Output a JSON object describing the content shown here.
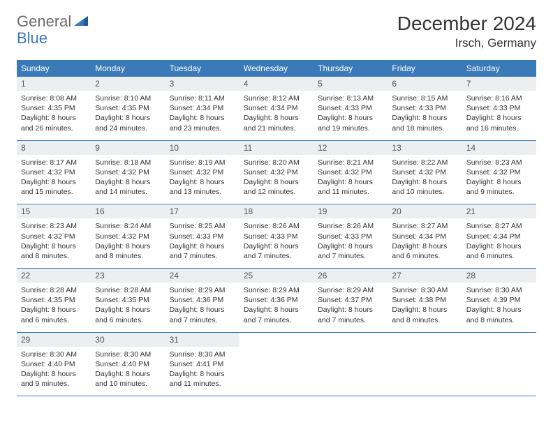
{
  "logo": {
    "text1": "General",
    "text2": "Blue"
  },
  "title": "December 2024",
  "location": "Irsch, Germany",
  "colors": {
    "header_bg": "#3a7ab8",
    "header_text": "#ffffff",
    "daynum_bg": "#eceeef",
    "border": "#3a7ab8",
    "logo_gray": "#6b6b6b",
    "logo_blue": "#3a7ab8"
  },
  "day_names": [
    "Sunday",
    "Monday",
    "Tuesday",
    "Wednesday",
    "Thursday",
    "Friday",
    "Saturday"
  ],
  "weeks": [
    [
      {
        "n": "1",
        "sr": "Sunrise: 8:08 AM",
        "ss": "Sunset: 4:35 PM",
        "dl": "Daylight: 8 hours and 26 minutes."
      },
      {
        "n": "2",
        "sr": "Sunrise: 8:10 AM",
        "ss": "Sunset: 4:35 PM",
        "dl": "Daylight: 8 hours and 24 minutes."
      },
      {
        "n": "3",
        "sr": "Sunrise: 8:11 AM",
        "ss": "Sunset: 4:34 PM",
        "dl": "Daylight: 8 hours and 23 minutes."
      },
      {
        "n": "4",
        "sr": "Sunrise: 8:12 AM",
        "ss": "Sunset: 4:34 PM",
        "dl": "Daylight: 8 hours and 21 minutes."
      },
      {
        "n": "5",
        "sr": "Sunrise: 8:13 AM",
        "ss": "Sunset: 4:33 PM",
        "dl": "Daylight: 8 hours and 19 minutes."
      },
      {
        "n": "6",
        "sr": "Sunrise: 8:15 AM",
        "ss": "Sunset: 4:33 PM",
        "dl": "Daylight: 8 hours and 18 minutes."
      },
      {
        "n": "7",
        "sr": "Sunrise: 8:16 AM",
        "ss": "Sunset: 4:33 PM",
        "dl": "Daylight: 8 hours and 16 minutes."
      }
    ],
    [
      {
        "n": "8",
        "sr": "Sunrise: 8:17 AM",
        "ss": "Sunset: 4:32 PM",
        "dl": "Daylight: 8 hours and 15 minutes."
      },
      {
        "n": "9",
        "sr": "Sunrise: 8:18 AM",
        "ss": "Sunset: 4:32 PM",
        "dl": "Daylight: 8 hours and 14 minutes."
      },
      {
        "n": "10",
        "sr": "Sunrise: 8:19 AM",
        "ss": "Sunset: 4:32 PM",
        "dl": "Daylight: 8 hours and 13 minutes."
      },
      {
        "n": "11",
        "sr": "Sunrise: 8:20 AM",
        "ss": "Sunset: 4:32 PM",
        "dl": "Daylight: 8 hours and 12 minutes."
      },
      {
        "n": "12",
        "sr": "Sunrise: 8:21 AM",
        "ss": "Sunset: 4:32 PM",
        "dl": "Daylight: 8 hours and 11 minutes."
      },
      {
        "n": "13",
        "sr": "Sunrise: 8:22 AM",
        "ss": "Sunset: 4:32 PM",
        "dl": "Daylight: 8 hours and 10 minutes."
      },
      {
        "n": "14",
        "sr": "Sunrise: 8:23 AM",
        "ss": "Sunset: 4:32 PM",
        "dl": "Daylight: 8 hours and 9 minutes."
      }
    ],
    [
      {
        "n": "15",
        "sr": "Sunrise: 8:23 AM",
        "ss": "Sunset: 4:32 PM",
        "dl": "Daylight: 8 hours and 8 minutes."
      },
      {
        "n": "16",
        "sr": "Sunrise: 8:24 AM",
        "ss": "Sunset: 4:32 PM",
        "dl": "Daylight: 8 hours and 8 minutes."
      },
      {
        "n": "17",
        "sr": "Sunrise: 8:25 AM",
        "ss": "Sunset: 4:33 PM",
        "dl": "Daylight: 8 hours and 7 minutes."
      },
      {
        "n": "18",
        "sr": "Sunrise: 8:26 AM",
        "ss": "Sunset: 4:33 PM",
        "dl": "Daylight: 8 hours and 7 minutes."
      },
      {
        "n": "19",
        "sr": "Sunrise: 8:26 AM",
        "ss": "Sunset: 4:33 PM",
        "dl": "Daylight: 8 hours and 7 minutes."
      },
      {
        "n": "20",
        "sr": "Sunrise: 8:27 AM",
        "ss": "Sunset: 4:34 PM",
        "dl": "Daylight: 8 hours and 6 minutes."
      },
      {
        "n": "21",
        "sr": "Sunrise: 8:27 AM",
        "ss": "Sunset: 4:34 PM",
        "dl": "Daylight: 8 hours and 6 minutes."
      }
    ],
    [
      {
        "n": "22",
        "sr": "Sunrise: 8:28 AM",
        "ss": "Sunset: 4:35 PM",
        "dl": "Daylight: 8 hours and 6 minutes."
      },
      {
        "n": "23",
        "sr": "Sunrise: 8:28 AM",
        "ss": "Sunset: 4:35 PM",
        "dl": "Daylight: 8 hours and 6 minutes."
      },
      {
        "n": "24",
        "sr": "Sunrise: 8:29 AM",
        "ss": "Sunset: 4:36 PM",
        "dl": "Daylight: 8 hours and 7 minutes."
      },
      {
        "n": "25",
        "sr": "Sunrise: 8:29 AM",
        "ss": "Sunset: 4:36 PM",
        "dl": "Daylight: 8 hours and 7 minutes."
      },
      {
        "n": "26",
        "sr": "Sunrise: 8:29 AM",
        "ss": "Sunset: 4:37 PM",
        "dl": "Daylight: 8 hours and 7 minutes."
      },
      {
        "n": "27",
        "sr": "Sunrise: 8:30 AM",
        "ss": "Sunset: 4:38 PM",
        "dl": "Daylight: 8 hours and 8 minutes."
      },
      {
        "n": "28",
        "sr": "Sunrise: 8:30 AM",
        "ss": "Sunset: 4:39 PM",
        "dl": "Daylight: 8 hours and 8 minutes."
      }
    ],
    [
      {
        "n": "29",
        "sr": "Sunrise: 8:30 AM",
        "ss": "Sunset: 4:40 PM",
        "dl": "Daylight: 8 hours and 9 minutes."
      },
      {
        "n": "30",
        "sr": "Sunrise: 8:30 AM",
        "ss": "Sunset: 4:40 PM",
        "dl": "Daylight: 8 hours and 10 minutes."
      },
      {
        "n": "31",
        "sr": "Sunrise: 8:30 AM",
        "ss": "Sunset: 4:41 PM",
        "dl": "Daylight: 8 hours and 11 minutes."
      },
      null,
      null,
      null,
      null
    ]
  ]
}
